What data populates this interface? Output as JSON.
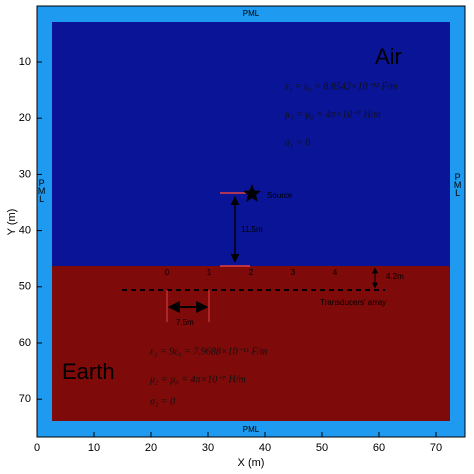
{
  "figure": {
    "x_axis": {
      "label": "X (m)",
      "ticks": [
        "0",
        "10",
        "20",
        "30",
        "40",
        "50",
        "60",
        "70"
      ]
    },
    "y_axis": {
      "label": "Y (m)",
      "ticks": [
        "10",
        "20",
        "30",
        "40",
        "50",
        "60",
        "70"
      ]
    },
    "pml": {
      "top": "PML",
      "bottom": "PML",
      "left": "PML",
      "right": "PML"
    },
    "air": {
      "label": "Air",
      "equations": [
        "ε₁ = ε₀ = 8.8542×10⁻¹² F/m",
        "μ₁ = μ₀ = 4π×10⁻⁷ H/m",
        "σ₁ = 0"
      ]
    },
    "earth": {
      "label": "Earth",
      "equations": [
        "ε₂ = 9ε₀ = 7.9688×10⁻¹¹ F/m",
        "μ₂ = μ₀ = 4π×10⁻⁷ H/m",
        "σ₂ = 0"
      ]
    },
    "source": {
      "label": "Source",
      "height": "11.5m"
    },
    "transducers": {
      "label": "Transducers' array",
      "indices": [
        "0",
        "1",
        "2",
        "3",
        "4"
      ],
      "spacing": "7.5m",
      "depth": "4.2m"
    }
  }
}
